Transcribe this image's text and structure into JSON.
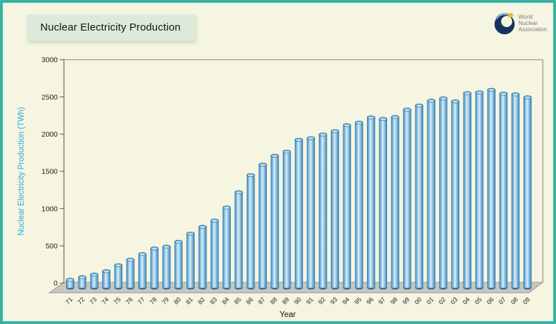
{
  "page": {
    "background_color": "#f5f5e1",
    "border_color": "#38b2a7"
  },
  "header": {
    "title": "Nuclear Electricity Production"
  },
  "logo": {
    "org_lines": [
      "World",
      "Nuclear",
      "Association"
    ],
    "circle_color": "#14335e",
    "dot_color": "#edc01f",
    "text_color": "#7d7d7d"
  },
  "chart_data": {
    "type": "bar",
    "style": "3d-cylinder",
    "title": "Nuclear Electricity Production",
    "xlabel": "Year",
    "ylabel": "Nuclear Electricity Production (TWh)",
    "ylim": [
      0,
      3000
    ],
    "yticks": [
      0,
      500,
      1000,
      1500,
      2000,
      2500,
      3000
    ],
    "grid": false,
    "legend": "none",
    "categories": [
      "71",
      "72",
      "73",
      "74",
      "75",
      "76",
      "77",
      "78",
      "79",
      "80",
      "81",
      "82",
      "83",
      "84",
      "85",
      "86",
      "87",
      "88",
      "89",
      "90",
      "91",
      "92",
      "93",
      "94",
      "95",
      "96",
      "97",
      "98",
      "99",
      "00",
      "01",
      "02",
      "03",
      "04",
      "05",
      "06",
      "07",
      "08",
      "09"
    ],
    "values": [
      110,
      145,
      180,
      225,
      305,
      380,
      455,
      530,
      555,
      620,
      730,
      820,
      905,
      1080,
      1285,
      1515,
      1655,
      1775,
      1830,
      1990,
      2010,
      2060,
      2105,
      2185,
      2220,
      2290,
      2270,
      2295,
      2395,
      2450,
      2515,
      2545,
      2505,
      2615,
      2625,
      2660,
      2610,
      2600,
      2560
    ],
    "bar_color": "#7fc4e8",
    "bar_edge_color": "#37749f",
    "ylabel_color": "#2ea7d9",
    "tick_label_color": "#1a1a1a",
    "floor_color": "#c7c7c1"
  }
}
